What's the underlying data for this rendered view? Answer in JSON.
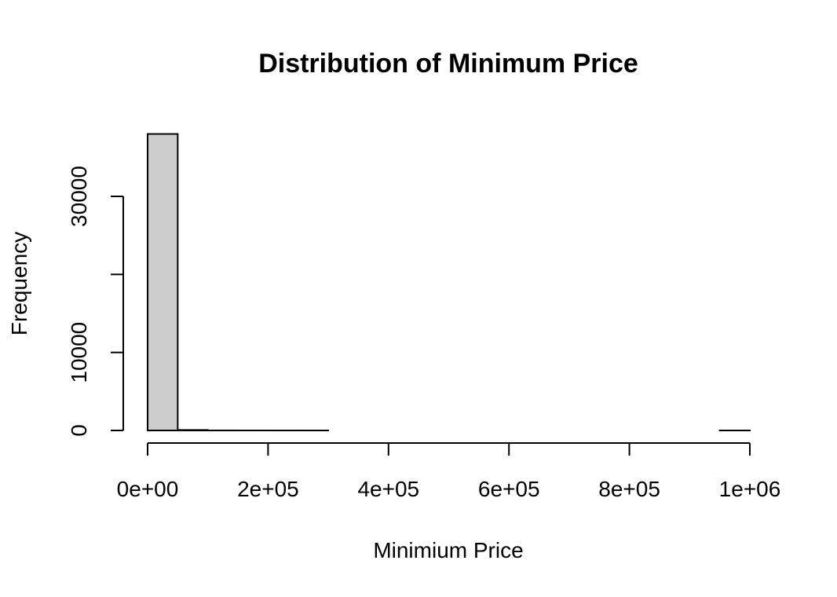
{
  "chart_data": {
    "type": "bar",
    "title": "Distribution of Minimum Price",
    "xlabel": "Minimium Price",
    "ylabel": "Frequency",
    "bin_edges": [
      0,
      50000,
      100000,
      150000,
      200000,
      250000,
      300000,
      350000,
      400000,
      450000,
      500000,
      550000,
      600000,
      650000,
      700000,
      750000,
      800000,
      850000,
      900000,
      950000,
      1000000
    ],
    "values": [
      38000,
      60,
      5,
      2,
      1,
      1,
      0,
      0,
      0,
      0,
      0,
      0,
      0,
      0,
      0,
      0,
      0,
      0,
      0,
      1
    ],
    "xlim": [
      0,
      1000000
    ],
    "ylim": [
      0,
      38000
    ],
    "x_ticks": [
      0,
      200000,
      400000,
      600000,
      800000,
      1000000
    ],
    "x_tick_labels": [
      "0e+00",
      "2e+05",
      "4e+05",
      "6e+05",
      "8e+05",
      "1e+06"
    ],
    "y_ticks": [
      0,
      10000,
      20000,
      30000
    ],
    "y_tick_labels": [
      "0",
      "10000",
      "",
      "30000"
    ],
    "bar_color": "#cccccc",
    "grid": false,
    "legend": "none"
  }
}
